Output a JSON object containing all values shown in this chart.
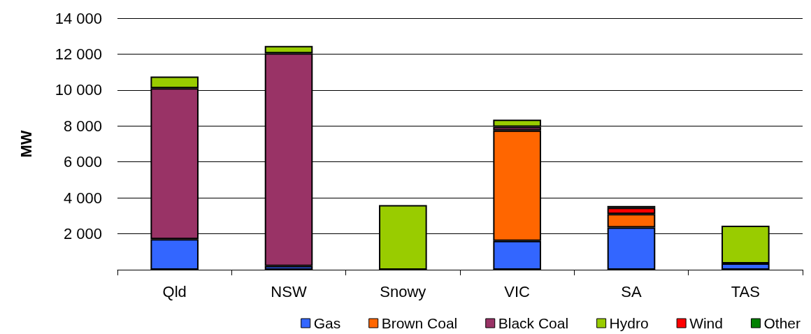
{
  "chart_data": {
    "type": "bar",
    "stacked": true,
    "ylabel": "MW",
    "categories": [
      "Qld",
      "NSW",
      "Snowy",
      "VIC",
      "SA",
      "TAS"
    ],
    "series": [
      {
        "name": "Gas",
        "color": "#3366ff",
        "values": [
          1700,
          200,
          0,
          1600,
          2350,
          350
        ]
      },
      {
        "name": "Brown Coal",
        "color": "#ff6600",
        "values": [
          0,
          0,
          0,
          6150,
          750,
          0
        ]
      },
      {
        "name": "Black Coal",
        "color": "#993366",
        "values": [
          8400,
          11850,
          0,
          200,
          0,
          0
        ]
      },
      {
        "name": "Hydro",
        "color": "#99cc00",
        "values": [
          650,
          400,
          3600,
          400,
          0,
          2100
        ]
      },
      {
        "name": "Wind",
        "color": "#ff0000",
        "values": [
          0,
          0,
          0,
          0,
          350,
          0
        ]
      },
      {
        "name": "Other",
        "color": "#008000",
        "values": [
          0,
          0,
          0,
          0,
          100,
          0
        ]
      }
    ],
    "ylim": [
      0,
      14000
    ],
    "yticks": [
      {
        "value": 0,
        "label": null
      },
      {
        "value": 2000,
        "label": "2 000"
      },
      {
        "value": 4000,
        "label": "4 000"
      },
      {
        "value": 6000,
        "label": "6 000"
      },
      {
        "value": 8000,
        "label": "8 000"
      },
      {
        "value": 10000,
        "label": "10 000"
      },
      {
        "value": 12000,
        "label": "12 000"
      },
      {
        "value": 14000,
        "label": "14 000"
      }
    ],
    "grid": "y",
    "legend": "bottom right"
  }
}
